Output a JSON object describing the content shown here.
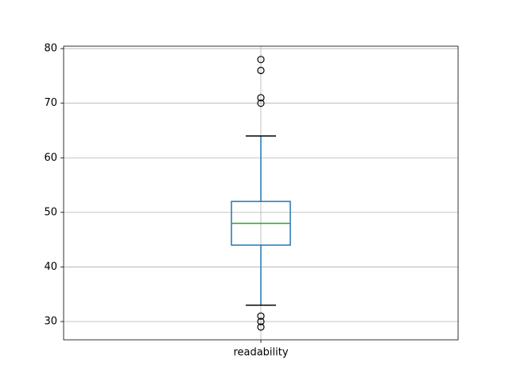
{
  "chart_data": {
    "type": "box",
    "categories": [
      "readability"
    ],
    "boxes": [
      {
        "whislo": 33,
        "q1": 44,
        "median": 48,
        "q3": 52,
        "whishi": 64,
        "fliers": [
          78,
          76,
          71,
          70,
          31,
          30,
          29
        ]
      }
    ],
    "box_color": "#1f77b4",
    "median_color": "#2ca02c",
    "cap_color": "#000000",
    "ylim": [
      26.65,
      80.45
    ],
    "yticks": [
      30,
      40,
      50,
      60,
      70,
      80
    ],
    "grid": true
  }
}
